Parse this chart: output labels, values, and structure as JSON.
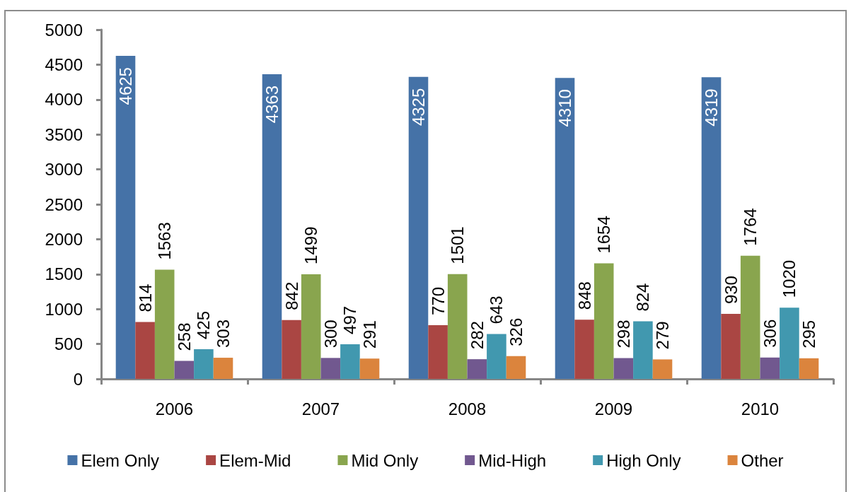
{
  "chart_data": {
    "type": "bar",
    "categories": [
      "2006",
      "2007",
      "2008",
      "2009",
      "2010"
    ],
    "series": [
      {
        "name": "Elem Only",
        "color": "#4572a7",
        "values": [
          4625,
          4363,
          4325,
          4310,
          4319
        ]
      },
      {
        "name": "Elem-Mid",
        "color": "#aa4643",
        "values": [
          814,
          842,
          770,
          848,
          930
        ]
      },
      {
        "name": "Mid Only",
        "color": "#89a54e",
        "values": [
          1563,
          1499,
          1501,
          1654,
          1764
        ]
      },
      {
        "name": "Mid-High",
        "color": "#71588f",
        "values": [
          258,
          300,
          282,
          298,
          306
        ]
      },
      {
        "name": "High Only",
        "color": "#4198af",
        "values": [
          425,
          497,
          643,
          824,
          1020
        ]
      },
      {
        "name": "Other",
        "color": "#db843d",
        "values": [
          303,
          291,
          326,
          279,
          295
        ]
      }
    ],
    "ylim": [
      0,
      5000
    ],
    "yticks": [
      0,
      500,
      1000,
      1500,
      2000,
      2500,
      3000,
      3500,
      4000,
      4500,
      5000
    ],
    "data_labels": true,
    "grid": false,
    "legend": "bottom"
  }
}
